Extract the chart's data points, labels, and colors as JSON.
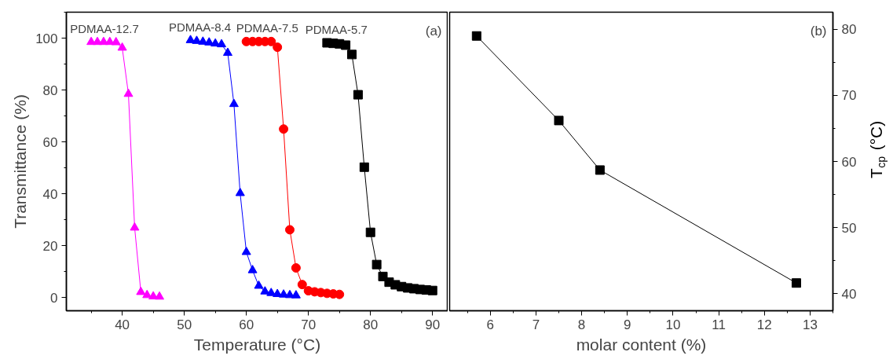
{
  "chart_data": [
    {
      "type": "line",
      "xlabel": "Temperature (°C)",
      "ylabel": "Transmittance (%)",
      "xlim": [
        31,
        92.5
      ],
      "ylim": [
        -5,
        110
      ],
      "xticks": [
        40,
        50,
        60,
        70,
        80,
        90
      ],
      "yticks": [
        0,
        20,
        40,
        60,
        80,
        100
      ],
      "grid": false,
      "annotations": [
        "(a)"
      ],
      "series": [
        {
          "name": "PDMAA-12.7",
          "color": "#ff00ff",
          "marker": "triangle",
          "x": [
            35,
            36,
            37,
            38,
            39,
            40,
            41,
            42,
            43,
            44,
            45,
            46
          ],
          "values": [
            98.5,
            98.5,
            98.5,
            98.5,
            98.4,
            96.3,
            78.5,
            27,
            2.2,
            1,
            0.5,
            0.4
          ]
        },
        {
          "name": "PDMAA-8.4",
          "color": "#0000ff",
          "marker": "triangle",
          "x": [
            51,
            52,
            53,
            54,
            55,
            56,
            57,
            58,
            59,
            60,
            61,
            62,
            63,
            64,
            65,
            66,
            67,
            68
          ],
          "values": [
            99.2,
            98.9,
            98.6,
            98.3,
            97.9,
            97.6,
            94.3,
            74.6,
            40.3,
            17.6,
            10.6,
            4.6,
            2.4,
            1.8,
            1.4,
            1.2,
            1,
            0.9
          ]
        },
        {
          "name": "PDMAA-7.5",
          "color": "#ff0000",
          "marker": "circle",
          "x": [
            60,
            61,
            62,
            63,
            64,
            65,
            66,
            67,
            68,
            69,
            70,
            71,
            72,
            73,
            74,
            75
          ],
          "values": [
            98.7,
            98.7,
            98.7,
            98.7,
            98.7,
            96.5,
            65,
            26.2,
            11.5,
            5.1,
            2.7,
            2.3,
            2,
            1.7,
            1.5,
            1.3
          ]
        },
        {
          "name": "PDMAA-5.7",
          "color": "#000000",
          "marker": "square",
          "x": [
            73,
            74,
            75,
            76,
            77,
            78,
            79,
            80,
            81,
            82,
            83,
            84,
            85,
            86,
            87,
            88,
            89,
            90
          ],
          "values": [
            98.2,
            98,
            97.8,
            97.3,
            93.7,
            78.2,
            50.3,
            25.2,
            12.8,
            8.2,
            6,
            5,
            4.3,
            3.8,
            3.5,
            3.2,
            3,
            2.8
          ]
        }
      ]
    },
    {
      "type": "line",
      "xlabel": "molar content (%)",
      "y2label": "T$_{cp}$ (°C)",
      "xlim": [
        5.11,
        13.5
      ],
      "y2lim": [
        37.4,
        82.6
      ],
      "xticks": [
        6,
        7,
        8,
        9,
        10,
        11,
        12,
        13
      ],
      "y2ticks": [
        40,
        50,
        60,
        70,
        80
      ],
      "grid": false,
      "marker": "square",
      "annotations": [
        "(b)"
      ],
      "series": [
        {
          "color": "#000000",
          "axis": "y2",
          "x": [
            5.7,
            7.5,
            8.4,
            12.7
          ],
          "values": [
            79,
            66.2,
            58.7,
            41.6
          ]
        }
      ]
    }
  ]
}
